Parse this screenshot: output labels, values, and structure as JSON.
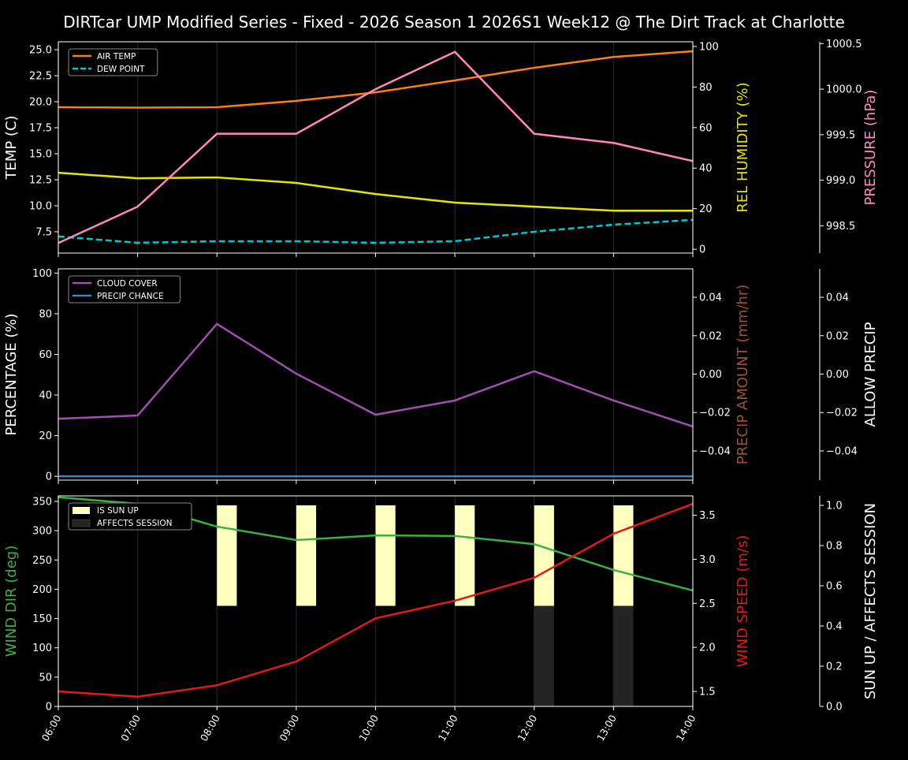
{
  "chart_data": {
    "type": "line",
    "title": "DIRTcar UMP Modified Series - Fixed - 2026 Season 1 2026S1 Week12 @ The Dirt Track at Charlotte",
    "x": [
      "06:00",
      "07:00",
      "08:00",
      "09:00",
      "10:00",
      "11:00",
      "12:00",
      "13:00",
      "14:00"
    ],
    "grid": "vertical",
    "panels": [
      {
        "legend": "top-left",
        "axes": [
          {
            "id": "temp",
            "label": "TEMP (C)",
            "side": "left",
            "color": "#ffffff",
            "range": [
              5.45,
              25.76
            ],
            "ticks": [
              "7.5",
              "10.0",
              "12.5",
              "15.0",
              "17.5",
              "20.0",
              "22.5",
              "25.0"
            ]
          },
          {
            "id": "rh",
            "label": "REL HUMIDITY (%)",
            "side": "right",
            "color": "#e6e600",
            "range": [
              -1.9,
              102.3
            ],
            "ticks": [
              "0",
              "20",
              "40",
              "60",
              "80",
              "100"
            ]
          },
          {
            "id": "pres",
            "label": "PRESSURE (hPa)",
            "side": "outer",
            "color": "#ff88c0",
            "range": [
              998.2,
              1000.52
            ],
            "ticks": [
              "998.5",
              "999.0",
              "999.5",
              "1000.0",
              "1000.5"
            ]
          }
        ],
        "series": [
          {
            "name": "AIR TEMP",
            "axis": "temp",
            "color": "#ff7f0e",
            "dash": false,
            "legend": true,
            "values": [
              19.47,
              19.43,
              19.47,
              20.08,
              20.9,
              22.05,
              23.26,
              24.3,
              24.85
            ]
          },
          {
            "name": "DEW POINT",
            "axis": "temp",
            "color": "#00c8d0",
            "dash": true,
            "legend": true,
            "values": [
              7.05,
              6.44,
              6.59,
              6.59,
              6.44,
              6.59,
              7.5,
              8.18,
              8.64
            ]
          },
          {
            "name": "",
            "axis": "rh",
            "color": "#e6e600",
            "dash": false,
            "legend": false,
            "values": [
              37.7,
              35.0,
              35.4,
              32.7,
              27.2,
              23.0,
              21.0,
              19.0,
              19.0
            ]
          },
          {
            "name": "",
            "axis": "pres",
            "color": "#ff88c0",
            "dash": false,
            "legend": false,
            "values": [
              998.31,
              998.71,
              999.51,
              999.51,
              1000.0,
              1000.41,
              999.51,
              999.41,
              999.21
            ]
          }
        ]
      },
      {
        "legend": "top-left",
        "axes": [
          {
            "id": "pct",
            "label": "PERCENTAGE (%)",
            "side": "left",
            "color": "#ffffff",
            "range": [
              -1.9,
              102.1
            ],
            "ticks": [
              "0",
              "20",
              "40",
              "60",
              "80",
              "100"
            ]
          },
          {
            "id": "amt",
            "label": "PRECIP AMOUNT (mm/hr)",
            "side": "right",
            "color": "#a0522d",
            "range": [
              -0.0552,
              0.0548
            ],
            "ticks": [
              "−0.04",
              "−0.02",
              "0.00",
              "0.02",
              "0.04"
            ]
          },
          {
            "id": "allow",
            "label": "ALLOW PRECIP",
            "side": "outer",
            "color": "#ffffff",
            "range": [
              -0.0552,
              0.0548
            ],
            "ticks": [
              "−0.04",
              "−0.02",
              "0.00",
              "0.02",
              "0.04"
            ]
          }
        ],
        "series": [
          {
            "name": "CLOUD COVER",
            "axis": "pct",
            "color": "#a050b0",
            "dash": false,
            "legend": true,
            "values": [
              28.3,
              29.9,
              75.0,
              50.5,
              30.3,
              37.3,
              51.7,
              37.3,
              24.5
            ]
          },
          {
            "name": "PRECIP CHANCE",
            "axis": "pct",
            "color": "#3a86c8",
            "dash": false,
            "legend": true,
            "values": [
              0,
              0,
              0,
              0,
              0,
              0,
              0,
              0,
              0
            ]
          }
        ]
      },
      {
        "legend": "top-left",
        "axes": [
          {
            "id": "dir",
            "label": "WIND DIR (deg)",
            "side": "left",
            "color": "#3cb043",
            "range": [
              0,
              359.4
            ],
            "ticks": [
              "0",
              "50",
              "100",
              "150",
              "200",
              "250",
              "300",
              "350"
            ]
          },
          {
            "id": "spd",
            "label": "WIND SPEED (m/s)",
            "side": "right",
            "color": "#e31a1c",
            "range": [
              1.33,
              3.72
            ],
            "ticks": [
              "1.5",
              "2.0",
              "2.5",
              "3.0",
              "3.5"
            ]
          },
          {
            "id": "sun",
            "label": "SUN UP / AFFECTS SESSION",
            "side": "outer",
            "color": "#ffffff",
            "range": [
              0,
              1.047
            ],
            "ticks": [
              "0.0",
              "0.2",
              "0.4",
              "0.6",
              "0.8",
              "1.0"
            ]
          }
        ],
        "bars": [
          {
            "name": "IS SUN UP",
            "axis": "sun",
            "color": "#ffffc0",
            "base": 0.5,
            "values": [
              0,
              0,
              1,
              1,
              1,
              1,
              1,
              1,
              0
            ]
          },
          {
            "name": "AFFECTS SESSION",
            "axis": "sun",
            "color": "#242424",
            "base": 0,
            "values": [
              0,
              0,
              0,
              0,
              0,
              0,
              1,
              1,
              0
            ]
          }
        ],
        "series": [
          {
            "name": "",
            "axis": "dir",
            "color": "#3cb043",
            "dash": false,
            "legend": false,
            "values": [
              357,
              346,
              307,
              284,
              292,
              291,
              277,
              233,
              198
            ]
          },
          {
            "name": "",
            "axis": "spd",
            "color": "#e31a1c",
            "dash": false,
            "legend": false,
            "values": [
              1.5,
              1.44,
              1.57,
              1.84,
              2.33,
              2.53,
              2.79,
              3.29,
              3.63
            ]
          }
        ]
      }
    ]
  }
}
